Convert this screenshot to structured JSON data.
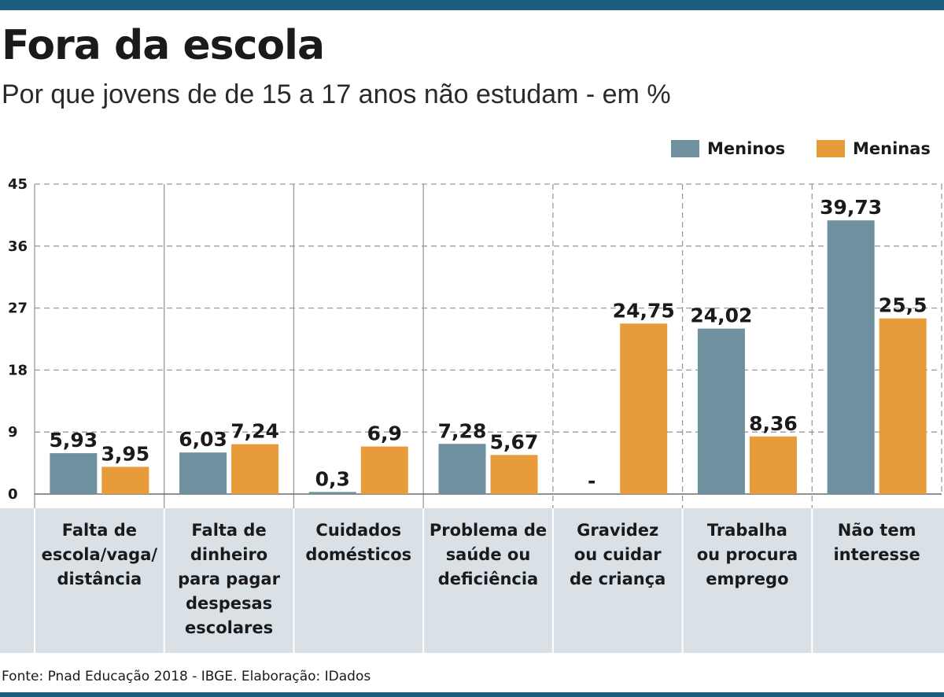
{
  "chart_data": {
    "type": "bar",
    "title": "Fora da escola",
    "subtitle": "Por que jovens de de 15 a 17 anos não estudam - em %",
    "categories": [
      "Falta de\nescola/vaga/\ndistância",
      "Falta de\ndinheiro\npara pagar\ndespesas\nescolares",
      "Cuidados\ndomésticos",
      "Problema de\nsaúde ou\ndeficiência",
      "Gravidez\nou cuidar\nde criança",
      "Trabalha\nou procura\nemprego",
      "Não tem\ninteresse"
    ],
    "series": [
      {
        "name": "Meninos",
        "color": "#6e909f",
        "values": [
          5.93,
          6.03,
          0.3,
          7.28,
          null,
          24.02,
          39.73
        ],
        "labels": [
          "5,93",
          "6,03",
          "0,3",
          "7,28",
          "-",
          "24,02",
          "39,73"
        ]
      },
      {
        "name": "Meninas",
        "color": "#e89b3a",
        "values": [
          3.95,
          7.24,
          6.9,
          5.67,
          24.75,
          8.36,
          25.5
        ],
        "labels": [
          "3,95",
          "7,24",
          "6,9",
          "5,67",
          "24,75",
          "8,36",
          "25,5"
        ]
      }
    ],
    "yticks": [
      0,
      9,
      18,
      27,
      36,
      45
    ],
    "ylim": [
      0,
      45
    ],
    "xlabel": "",
    "ylabel": "",
    "grid": true,
    "legend_position": "top-right"
  },
  "source": "Fonte: Pnad Educação 2018 - IBGE. Elaboração: IDados"
}
